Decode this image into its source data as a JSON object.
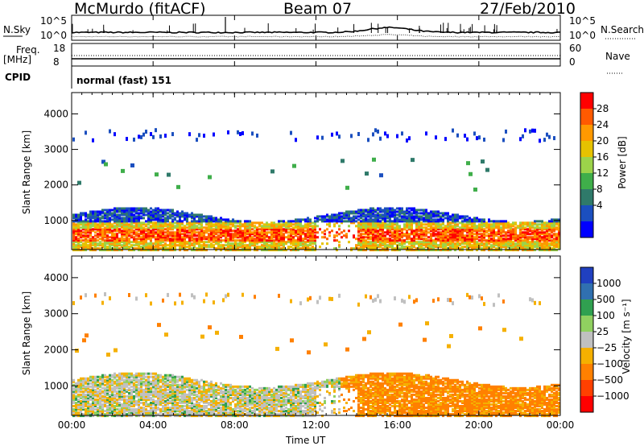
{
  "header": {
    "station": "McMurdo (fitACF)",
    "beam": "Beam 07",
    "date": "27/Feb/2010"
  },
  "top_panels": {
    "nsky_label": "N.Sky",
    "nsearch_label": "N.Search",
    "nsky_ticks": [
      "10^5",
      "10^0"
    ],
    "nsearch_ticks": [
      "10^5",
      "10^0"
    ],
    "freq_label_line1": "Freq.",
    "freq_label_line2": "[MHz]",
    "freq_ticks": [
      "18",
      "8"
    ],
    "nave_label": "Nave",
    "nave_ticks": [
      "60",
      "0"
    ],
    "cpid_label": "CPID",
    "cpid_value": "normal (fast) 151"
  },
  "chart_data": [
    {
      "type": "heatmap",
      "name": "power",
      "ylabel": "Slant Range [km]",
      "yticks": [
        "4000",
        "3000",
        "2000",
        "1000"
      ],
      "ylim": [
        180,
        4600
      ],
      "colorbar_label": "Power [dB]",
      "colorbar_ticks": [
        "28",
        "24",
        "20",
        "16",
        "12",
        "8",
        "4"
      ],
      "colorbar_colors": [
        "#ff0000",
        "#ff5a00",
        "#ff9900",
        "#e6c200",
        "#9cd34a",
        "#3fae4a",
        "#2f7a6a",
        "#1b4fbf",
        "#0000ff"
      ]
    },
    {
      "type": "heatmap",
      "name": "velocity",
      "ylabel": "Slant Range [km]",
      "yticks": [
        "4000",
        "3000",
        "2000",
        "1000"
      ],
      "ylim": [
        180,
        4600
      ],
      "colorbar_label": "Velocity [m s⁻¹]",
      "colorbar_ticks": [
        "1000",
        "500",
        "100",
        "25",
        "−25",
        "−100",
        "−500",
        "−1000"
      ],
      "colorbar_colors": [
        "#2040c0",
        "#3070b0",
        "#30a050",
        "#90d060",
        "#c0c0c0",
        "#f5b000",
        "#ff8000",
        "#ff4000",
        "#ff0000"
      ]
    }
  ],
  "x_axis": {
    "ticks": [
      "00:00",
      "04:00",
      "08:00",
      "12:00",
      "16:00",
      "20:00",
      "00:00"
    ],
    "label": "Time UT"
  }
}
